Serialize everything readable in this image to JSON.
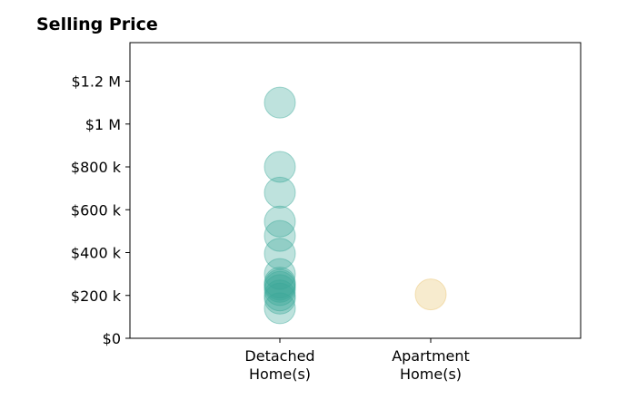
{
  "chart_data": {
    "type": "scatter",
    "title": "Selling Price",
    "xlabel": "",
    "ylabel": "",
    "categories": [
      [
        "Detached",
        "Home(s)"
      ],
      [
        "Apartment",
        "Home(s)"
      ]
    ],
    "ylim": [
      0,
      1380000
    ],
    "yticks": [
      0,
      200000,
      400000,
      600000,
      800000,
      1000000,
      1200000
    ],
    "ytick_labels": [
      "$0",
      "$200 k",
      "$400 k",
      "$600 k",
      "$800 k",
      "$1 M",
      "$1.2 M"
    ],
    "grid": false,
    "legend": "none",
    "series": [
      {
        "category": 0,
        "color": "#3aa899",
        "values": [
          1100000,
          800000,
          680000,
          545000,
          478000,
          395000,
          300000,
          260000,
          250000,
          240000,
          225000,
          200000,
          185000,
          140000
        ]
      },
      {
        "category": 1,
        "color": "#e8c26a",
        "values": [
          205000
        ]
      }
    ]
  }
}
